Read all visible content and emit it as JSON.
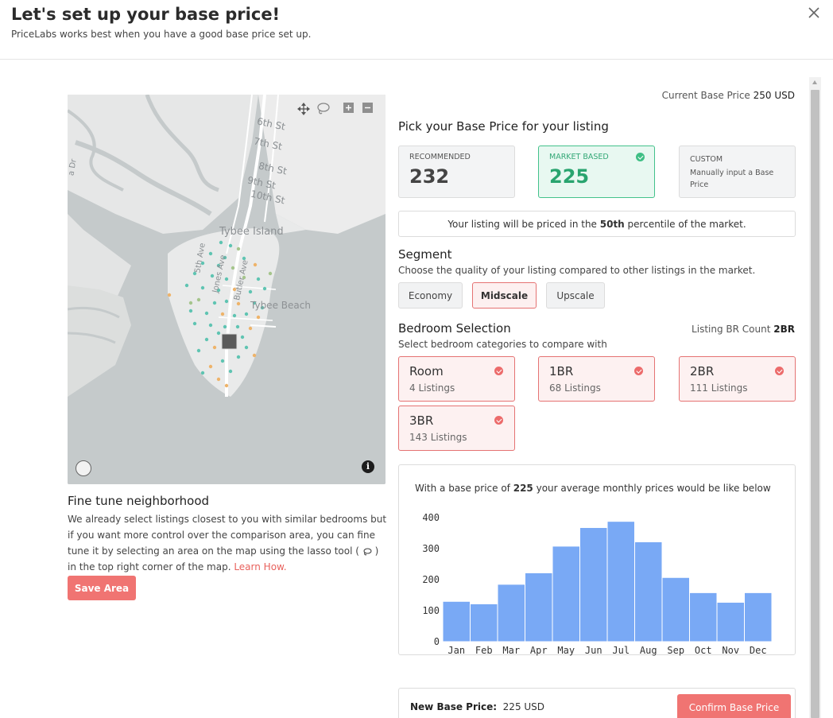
{
  "header": {
    "title": "Let's set up your base price!",
    "subtitle": "PriceLabs works best when you have a good base price set up."
  },
  "map": {
    "streets": [
      "6th St",
      "7th St",
      "8th St",
      "9th St",
      "10th St"
    ],
    "place": "Tybee Island",
    "avenues": [
      "5th Ave",
      "Jones Ave",
      "Butler Ave"
    ],
    "beach": "Tybee Beach",
    "left_partial": "a Dr",
    "info_glyph": "i"
  },
  "fine_tune": {
    "title": "Fine tune neighborhood",
    "text_before": "We already select listings closest to you with similar bedrooms but if you want more control over the comparison area, you can fine tune it by selecting an area on the map using the lasso tool (",
    "text_after": ") in the top right corner of the map. ",
    "link": "Learn How.",
    "save_button": "Save Area"
  },
  "current_base": {
    "label": "Current Base Price",
    "value": "250 USD"
  },
  "pick": {
    "title": "Pick your Base Price for your listing",
    "recommended": {
      "label": "RECOMMENDED",
      "value": "232"
    },
    "market": {
      "label": "MARKET BASED",
      "value": "225"
    },
    "custom": {
      "label": "CUSTOM",
      "sub": "Manually input a Base Price"
    }
  },
  "percentile": {
    "before": "Your listing will be priced in the ",
    "value": "50th",
    "after": " percentile of the market."
  },
  "segment": {
    "title": "Segment",
    "desc": "Choose the quality of your listing compared to other listings in the market.",
    "options": [
      "Economy",
      "Midscale",
      "Upscale"
    ],
    "selected": "Midscale"
  },
  "bedrooms": {
    "title": "Bedroom Selection",
    "count_label": "Listing BR Count",
    "count_value": "2BR",
    "desc": "Select bedroom categories to compare with",
    "items": [
      {
        "name": "Room",
        "listings": "4 Listings"
      },
      {
        "name": "1BR",
        "listings": "68 Listings"
      },
      {
        "name": "2BR",
        "listings": "111 Listings"
      },
      {
        "name": "3BR",
        "listings": "143 Listings"
      }
    ]
  },
  "chart_text": {
    "before": "With a base price of ",
    "value": "225",
    "after": " your average monthly prices would be like below"
  },
  "chart_data": {
    "type": "bar",
    "title": "",
    "categories": [
      "Jan",
      "Feb",
      "Mar",
      "Apr",
      "May",
      "Jun",
      "Jul",
      "Aug",
      "Sep",
      "Oct",
      "Nov",
      "Dec"
    ],
    "values": [
      130,
      122,
      185,
      222,
      308,
      368,
      388,
      322,
      207,
      158,
      127,
      158
    ],
    "ylim": [
      0,
      400
    ],
    "yticks": [
      "0",
      "100",
      "200",
      "300",
      "400"
    ],
    "xlabel": "",
    "ylabel": "",
    "bar_color": "#79a9f5"
  },
  "footer": {
    "new_price_label": "New Base Price:",
    "new_price_value": "225 USD",
    "confirm_button": "Confirm Base Price"
  },
  "colors": {
    "accent": "#f07472",
    "selected_green": "#43c28b",
    "selected_red": "#e57373",
    "dot_teal": "#5fc4b2",
    "dot_orange": "#eeb36a"
  }
}
